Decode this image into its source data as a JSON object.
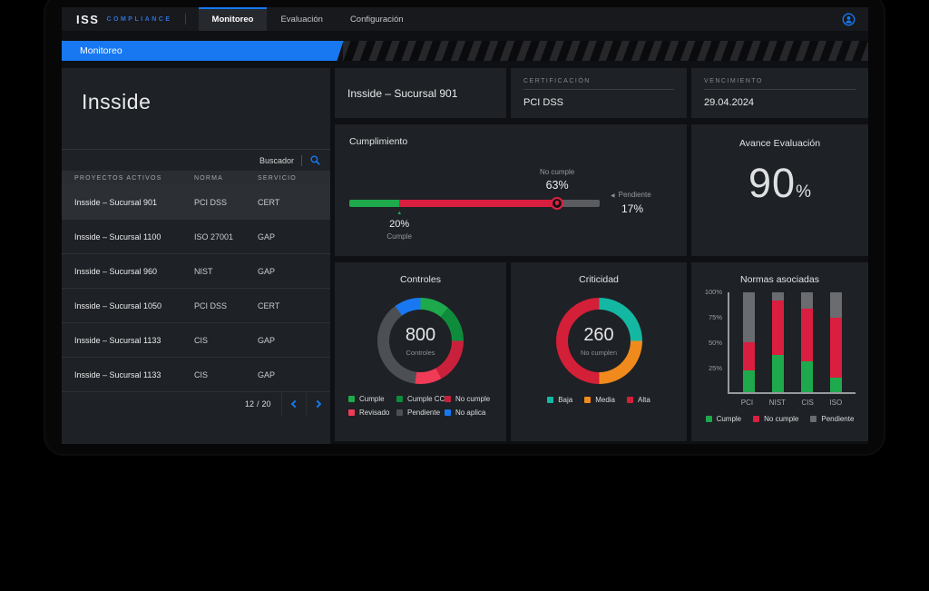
{
  "icons": {
    "up_triangle": "▲",
    "left_triangle": "◀"
  },
  "colors": {
    "accent_blue": "#1778F2",
    "banner_blue": "#1778F2"
  },
  "topbar": {
    "logo_primary": "ISS",
    "logo_secondary": "COMPLIANCE",
    "tabs": [
      {
        "label": "Monitoreo",
        "active": true
      },
      {
        "label": "Evaluación",
        "active": false
      },
      {
        "label": "Configuración",
        "active": false
      }
    ]
  },
  "banner": {
    "label": "Monitoreo"
  },
  "sidebar": {
    "title": "Insside",
    "search_label": "Buscador",
    "table": {
      "columns": [
        "PROYECTOS ACTIVOS",
        "NORMA",
        "SERVICIO"
      ],
      "rows": [
        {
          "proyecto": "Insside – Sucursal 901",
          "norma": "PCI DSS",
          "servicio": "CERT",
          "selected": true
        },
        {
          "proyecto": "Insside – Sucursal 1100",
          "norma": "ISO 27001",
          "servicio": "GAP",
          "selected": false
        },
        {
          "proyecto": "Insside – Sucursal 960",
          "norma": "NIST",
          "servicio": "GAP",
          "selected": false
        },
        {
          "proyecto": "Insside – Sucursal 1050",
          "norma": "PCI DSS",
          "servicio": "CERT",
          "selected": false
        },
        {
          "proyecto": "Insside – Sucursal 1133",
          "norma": "CIS",
          "servicio": "GAP",
          "selected": false
        },
        {
          "proyecto": "Insside – Sucursal 1133",
          "norma": "CIS",
          "servicio": "GAP",
          "selected": false
        }
      ],
      "pagination": {
        "current": "12",
        "separator": "/",
        "total": "20"
      }
    }
  },
  "detail": {
    "project_title": "Insside – Sucursal 901",
    "certification": {
      "label": "CERTIFICACIÓN",
      "value": "PCI DSS"
    },
    "expiry": {
      "label": "VENCIMIENTO",
      "value": "29.04.2024"
    }
  },
  "chart_data": [
    {
      "id": "cumplimiento",
      "type": "progress-bar",
      "title": "Cumplimiento",
      "segments": [
        {
          "label": "Cumple",
          "value": 20,
          "color": "#1EA94C"
        },
        {
          "label": "No cumple",
          "value": 63,
          "color": "#D91E3F"
        },
        {
          "label": "Pendiente",
          "value": 17,
          "color": "#5A5C60"
        }
      ],
      "annotations": {
        "top": {
          "label": "No cumple",
          "value": "63%"
        },
        "bottom": {
          "label": "Cumple",
          "value": "20%"
        },
        "right": {
          "label": "Pendiente",
          "value": "17%"
        }
      }
    },
    {
      "id": "avance",
      "type": "kpi",
      "title": "Avance Evaluación",
      "value": "90",
      "unit": "%"
    },
    {
      "id": "controles",
      "type": "donut",
      "title": "Controles",
      "center_value": "800",
      "center_label": "Controles",
      "segments": [
        {
          "label": "Cumple",
          "value": 11,
          "color": "#1EA94C"
        },
        {
          "label": "Cumple CC",
          "value": 14,
          "color": "#0E8C3C"
        },
        {
          "label": "No cumple",
          "value": 17,
          "color": "#C9203C"
        },
        {
          "label": "Revisado",
          "value": 10,
          "color": "#EF3B56"
        },
        {
          "label": "Pendiente",
          "value": 38,
          "color": "#4C4F53"
        },
        {
          "label": "No aplica",
          "value": 10,
          "color": "#1778F2"
        }
      ]
    },
    {
      "id": "criticidad",
      "type": "donut",
      "title": "Criticidad",
      "center_value": "260",
      "center_label": "No cumplen",
      "segments": [
        {
          "label": "Baja",
          "value": 25,
          "color": "#14B8A2"
        },
        {
          "label": "Media",
          "value": 25,
          "color": "#F08A1D"
        },
        {
          "label": "Alta",
          "value": 50,
          "color": "#D41F38"
        }
      ]
    },
    {
      "id": "normas",
      "type": "stacked-bar",
      "title": "Normas asociadas",
      "categories": [
        "PCI",
        "NIST",
        "CIS",
        "ISO"
      ],
      "series": [
        {
          "name": "Cumple",
          "color": "#1EA94C",
          "values": [
            22,
            37,
            31,
            15
          ]
        },
        {
          "name": "No cumple",
          "color": "#D91E3F",
          "values": [
            28,
            55,
            53,
            60
          ]
        },
        {
          "name": "Pendiente",
          "color": "#6A6C70",
          "values": [
            50,
            8,
            16,
            25
          ]
        }
      ],
      "yticks": [
        "25%",
        "50%",
        "75%",
        "100%"
      ],
      "ylim": [
        0,
        100
      ],
      "grid": false,
      "legend_position": "bottom"
    }
  ]
}
